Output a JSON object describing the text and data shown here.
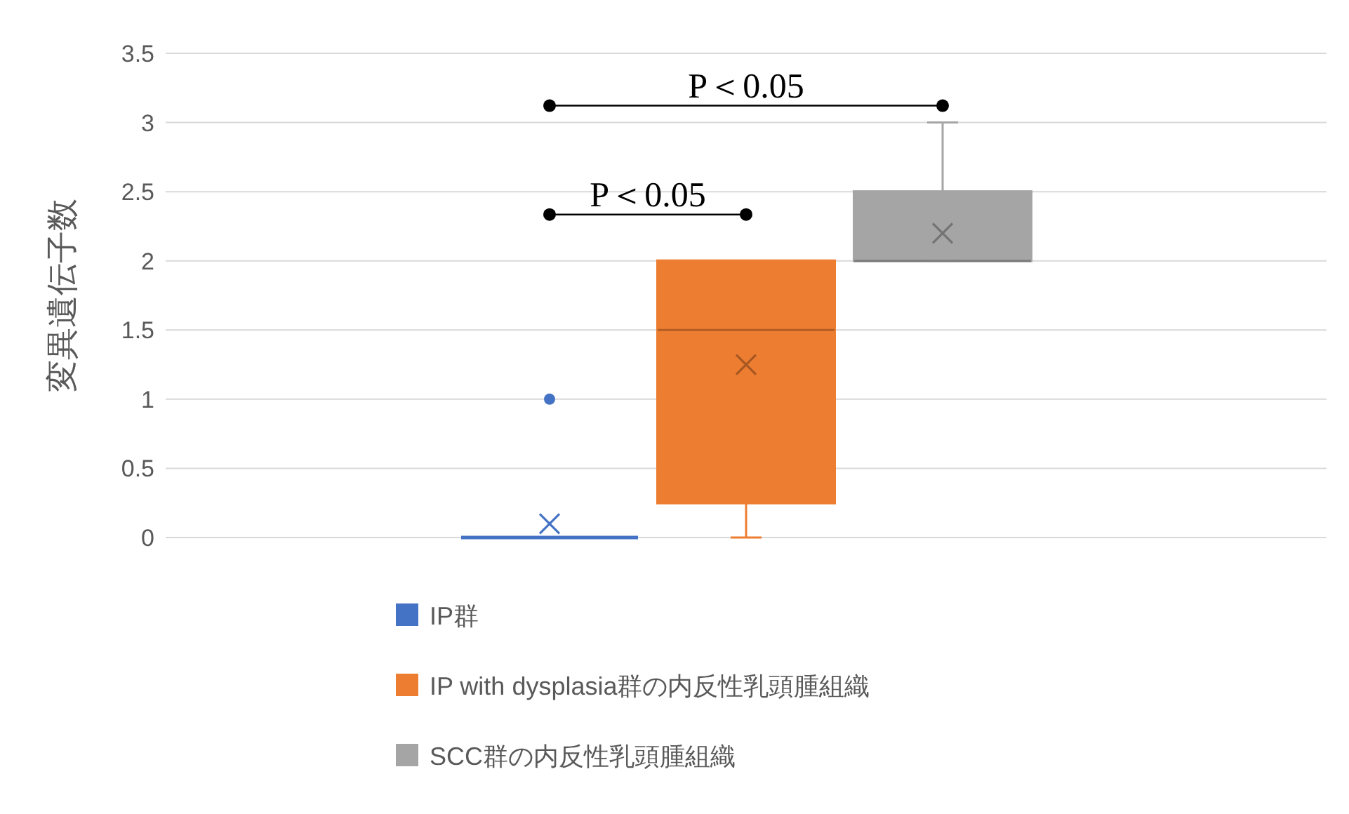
{
  "chart_data": {
    "type": "box",
    "ylabel": "変異遺伝子数",
    "categories": [
      null
    ],
    "ylim": [
      0,
      3.5
    ],
    "yticks": [
      0,
      0.5,
      1,
      1.5,
      2,
      2.5,
      3,
      3.5
    ],
    "grid": "y",
    "legend": "bottom",
    "series": [
      {
        "name": "IP群",
        "color": "#4472c4",
        "boxes": [
          {
            "low": 0,
            "q1": 0,
            "median": 0,
            "q3": 0,
            "high": 0,
            "mean": 0.1,
            "outliers": [
              1
            ]
          }
        ]
      },
      {
        "name": "IP with dysplasia群の内反性乳頭腫組織",
        "color": "#ed7d31",
        "boxes": [
          {
            "low": 0,
            "q1": 0.25,
            "median": 1.5,
            "q3": 2,
            "high": 2,
            "mean": 1.25
          }
        ]
      },
      {
        "name": "SCC群の内反性乳頭腫組織",
        "color": "#a5a5a5",
        "boxes": [
          {
            "low": 2,
            "q1": 2,
            "median": 2,
            "q3": 2.5,
            "high": 3,
            "mean": 2.2
          }
        ]
      }
    ],
    "annotations": [
      "P＜0.05",
      "P＜0.05"
    ]
  }
}
